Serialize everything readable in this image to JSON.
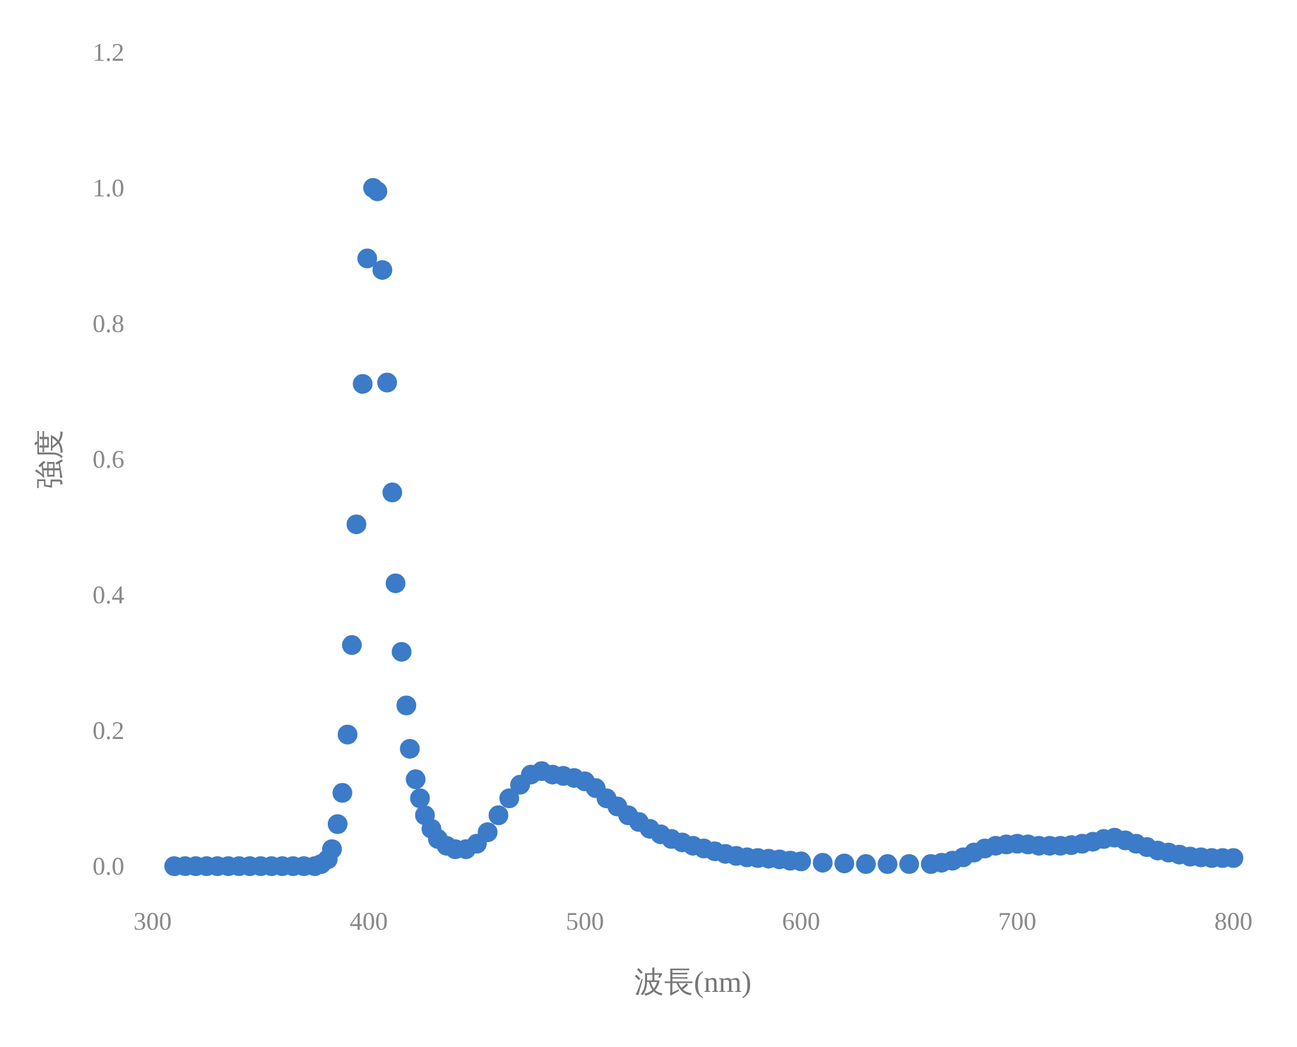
{
  "chart_data": {
    "type": "scatter",
    "xlabel": "波長(nm)",
    "ylabel": "強度",
    "xlim": [
      300,
      800
    ],
    "ylim": [
      0,
      1.2
    ],
    "xticks": [
      300,
      400,
      500,
      600,
      700,
      800
    ],
    "yticks": [
      {
        "value": 0,
        "label": "0.0"
      },
      0.2,
      0.4,
      0.6,
      0.8,
      {
        "value": 1,
        "label": "1.0"
      },
      1.2
    ],
    "grid": false,
    "marker": "circle",
    "series": [
      {
        "color": "#3b7bc8",
        "x": [
          310,
          315,
          320,
          325,
          330,
          335,
          340,
          345,
          350,
          355,
          360,
          365,
          370,
          375,
          378,
          381,
          383,
          385.6,
          387.8,
          390.2,
          392.2,
          394.3,
          397.2,
          399.3,
          402,
          404,
          406.3,
          408.5,
          410.9,
          412.4,
          415.2,
          417.4,
          419,
          421.7,
          423.7,
          426,
          429,
          432,
          436,
          440,
          445,
          450,
          455,
          460,
          465,
          470,
          475,
          480,
          485,
          490,
          495,
          500,
          505,
          510,
          515,
          520,
          525,
          530,
          535,
          540,
          545,
          550,
          555,
          560,
          565,
          570,
          575,
          580,
          585,
          590,
          595,
          600,
          610,
          620,
          630,
          640,
          650,
          660,
          665,
          670,
          675,
          680,
          685,
          690,
          695,
          700,
          705,
          710,
          715,
          720,
          725,
          730,
          735,
          740,
          745,
          750,
          755,
          760,
          765,
          770,
          775,
          780,
          785,
          790,
          795,
          800
        ],
        "values": [
          0,
          0,
          0,
          0,
          0,
          0,
          0,
          0,
          0,
          0,
          0,
          0,
          0,
          0,
          0.003,
          0.01,
          0.025,
          0.062,
          0.108,
          0.194,
          0.326,
          0.504,
          0.711,
          0.896,
          1.0,
          0.995,
          0.879,
          0.713,
          0.551,
          0.417,
          0.316,
          0.237,
          0.173,
          0.128,
          0.1,
          0.075,
          0.055,
          0.04,
          0.03,
          0.025,
          0.025,
          0.033,
          0.05,
          0.075,
          0.1,
          0.12,
          0.135,
          0.14,
          0.135,
          0.133,
          0.13,
          0.125,
          0.115,
          0.1,
          0.088,
          0.075,
          0.065,
          0.055,
          0.047,
          0.04,
          0.035,
          0.03,
          0.026,
          0.022,
          0.018,
          0.015,
          0.013,
          0.012,
          0.011,
          0.01,
          0.008,
          0.007,
          0.005,
          0.004,
          0.003,
          0.003,
          0.003,
          0.003,
          0.005,
          0.008,
          0.013,
          0.02,
          0.026,
          0.03,
          0.032,
          0.033,
          0.032,
          0.03,
          0.03,
          0.03,
          0.031,
          0.033,
          0.036,
          0.04,
          0.042,
          0.038,
          0.033,
          0.028,
          0.023,
          0.02,
          0.017,
          0.014,
          0.013,
          0.012,
          0.012,
          0.012
        ]
      }
    ]
  }
}
